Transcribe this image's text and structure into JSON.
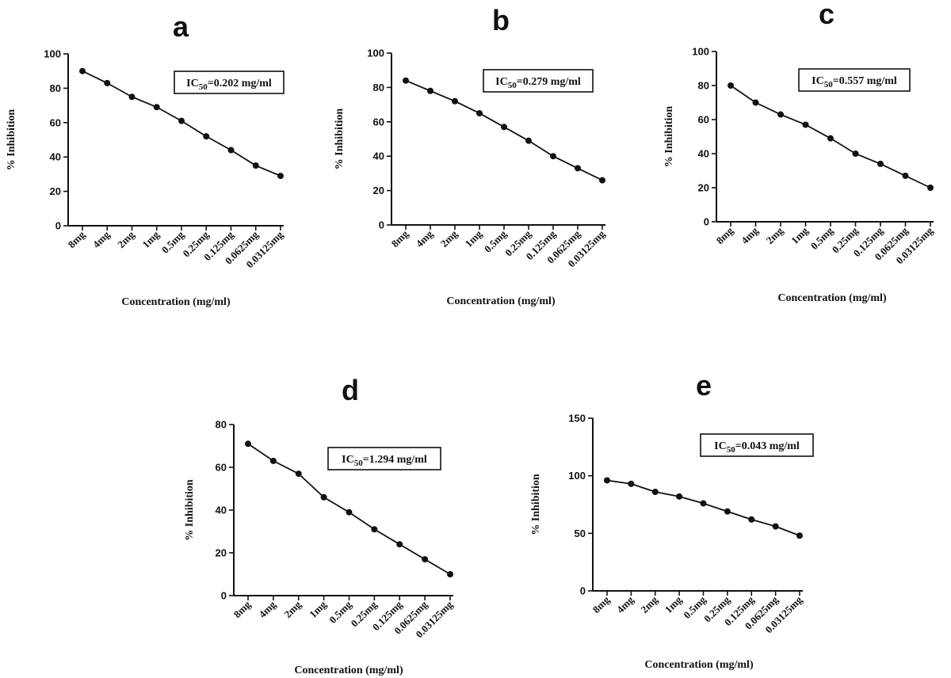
{
  "chart_data": [
    {
      "type": "line",
      "panel": "a",
      "categories": [
        "8mg",
        "4mg",
        "2mg",
        "1mg",
        "0.5mg",
        "0.25mg",
        "0.125mg",
        "0.0625mg",
        "0.03125mg"
      ],
      "values": [
        90,
        83,
        75,
        69,
        61,
        52,
        44,
        35,
        29
      ],
      "xlabel": "Concentration (mg/ml)",
      "ylabel": "% Inhibition",
      "ylim": [
        0,
        100
      ],
      "yticks": [
        0,
        20,
        40,
        60,
        80,
        100
      ],
      "annotation": {
        "prefix": "IC",
        "sub": "50",
        "text": "=0.202 mg/ml"
      }
    },
    {
      "type": "line",
      "panel": "b",
      "categories": [
        "8mg",
        "4mg",
        "2mg",
        "1mg",
        "0.5mg",
        "0.25mg",
        "0.125mg",
        "0.0625mg",
        "0.03125mg"
      ],
      "values": [
        84,
        78,
        72,
        65,
        57,
        49,
        40,
        33,
        26
      ],
      "xlabel": "Concentration (mg/ml)",
      "ylabel": "% Inhibition",
      "ylim": [
        0,
        100
      ],
      "yticks": [
        0,
        20,
        40,
        60,
        80,
        100
      ],
      "annotation": {
        "prefix": "IC",
        "sub": "50",
        "text": "=0.279 mg/ml"
      }
    },
    {
      "type": "line",
      "panel": "c",
      "categories": [
        "8mg",
        "4mg",
        "2mg",
        "1mg",
        "0.5mg",
        "0.25mg",
        "0.125mg",
        "0.0625mg",
        "0.03125mg"
      ],
      "values": [
        80,
        70,
        63,
        57,
        49,
        40,
        34,
        27,
        20
      ],
      "xlabel": "Concentration (mg/ml)",
      "ylabel": "% Inhibition",
      "ylim": [
        0,
        100
      ],
      "yticks": [
        0,
        20,
        40,
        60,
        80,
        100
      ],
      "annotation": {
        "prefix": "IC",
        "sub": "50",
        "text": "=0.557 mg/ml"
      }
    },
    {
      "type": "line",
      "panel": "d",
      "categories": [
        "8mg",
        "4mg",
        "2mg",
        "1mg",
        "0.5mg",
        "0.25mg",
        "0.125mg",
        "0.0625mg",
        "0.03125mg"
      ],
      "values": [
        71,
        63,
        57,
        46,
        39,
        31,
        24,
        17,
        10
      ],
      "xlabel": "Concentration (mg/ml)",
      "ylabel": "% Inhibition",
      "ylim": [
        0,
        80
      ],
      "yticks": [
        0,
        20,
        40,
        60,
        80
      ],
      "annotation": {
        "prefix": "IC",
        "sub": "50",
        "text": "=1.294 mg/ml"
      }
    },
    {
      "type": "line",
      "panel": "e",
      "categories": [
        "8mg",
        "4mg",
        "2mg",
        "1mg",
        "0.5mg",
        "0.25mg",
        "0.125mg",
        "0.0625mg",
        "0.03125mg"
      ],
      "values": [
        96,
        93,
        86,
        82,
        76,
        69,
        62,
        56,
        48
      ],
      "xlabel": "Concentration (mg/ml)",
      "ylabel": "% Inhibition",
      "ylim": [
        0,
        150
      ],
      "yticks": [
        0,
        50,
        100,
        150
      ],
      "annotation": {
        "prefix": "IC",
        "sub": "50",
        "text": "=0.043 mg/ml"
      }
    }
  ]
}
